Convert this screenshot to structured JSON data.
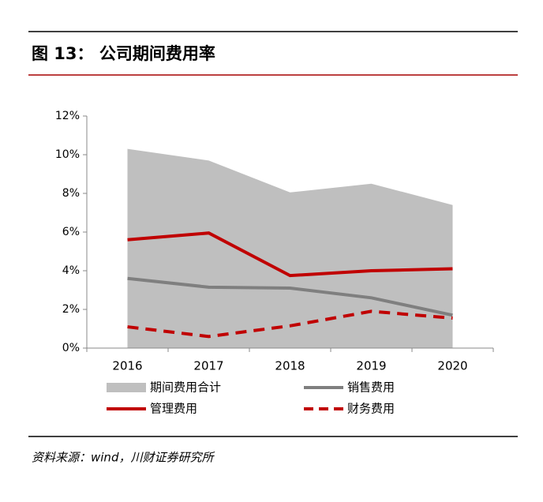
{
  "chart_data": {
    "type": "line",
    "title": "图 13： 公司期间费用率",
    "source": "资料来源：wind，川财证券研究所",
    "categories": [
      "2016",
      "2017",
      "2018",
      "2019",
      "2020"
    ],
    "ylim": [
      0,
      12
    ],
    "yticks": [
      {
        "value": 0,
        "label": "0%"
      },
      {
        "value": 2,
        "label": "2%"
      },
      {
        "value": 4,
        "label": "4%"
      },
      {
        "value": 6,
        "label": "6%"
      },
      {
        "value": 8,
        "label": "8%"
      },
      {
        "value": 10,
        "label": "10%"
      },
      {
        "value": 12,
        "label": "12%"
      }
    ],
    "series": [
      {
        "name": "期间费用合计",
        "color": "#bfbfbf",
        "style": "area",
        "values": [
          10.3,
          9.7,
          8.05,
          8.5,
          7.4
        ]
      },
      {
        "name": "销售费用",
        "color": "#7f7f7f",
        "style": "solid",
        "values": [
          3.6,
          3.15,
          3.1,
          2.6,
          1.7
        ]
      },
      {
        "name": "管理费用",
        "color": "#c00000",
        "style": "solid",
        "values": [
          5.6,
          5.95,
          3.75,
          4.0,
          4.1
        ]
      },
      {
        "name": "财务费用",
        "color": "#c00000",
        "style": "dashed",
        "values": [
          1.1,
          0.6,
          1.15,
          1.9,
          1.55
        ]
      }
    ]
  }
}
